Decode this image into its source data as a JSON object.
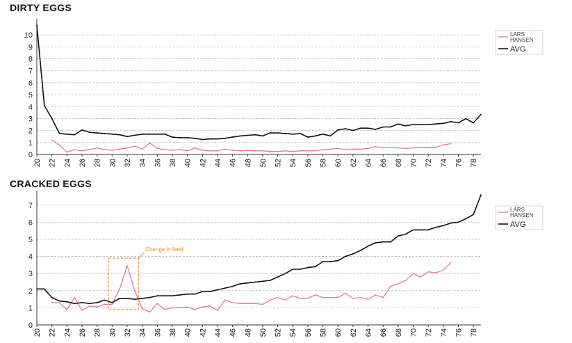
{
  "chart_data": [
    {
      "type": "line",
      "title": "DIRTY EGGS",
      "xlabel": "",
      "ylabel": "",
      "xlim": [
        20,
        79
      ],
      "ylim": [
        0,
        11
      ],
      "yticks": [
        0,
        1,
        2,
        3,
        4,
        5,
        6,
        7,
        8,
        9,
        10
      ],
      "xticks": [
        20,
        22,
        24,
        26,
        28,
        30,
        32,
        34,
        36,
        38,
        40,
        42,
        44,
        46,
        48,
        50,
        52,
        54,
        56,
        58,
        60,
        62,
        64,
        66,
        68,
        70,
        72,
        74,
        76,
        78
      ],
      "grid": "horizontal dashed",
      "legend": {
        "position": "top-right",
        "entries": [
          "LARS HANSEN",
          "AVG"
        ]
      },
      "series": [
        {
          "name": "LARS HANSEN",
          "color": "#e07aa5",
          "x": [
            22,
            23,
            24,
            25,
            26,
            27,
            28,
            29,
            30,
            31,
            32,
            33,
            34,
            35,
            36,
            37,
            38,
            39,
            40,
            41,
            42,
            43,
            44,
            45,
            46,
            47,
            48,
            49,
            50,
            51,
            52,
            53,
            54,
            55,
            56,
            57,
            58,
            59,
            60,
            61,
            62,
            63,
            64,
            65,
            66,
            67,
            68,
            69,
            70,
            71,
            72,
            73,
            74,
            75
          ],
          "y": [
            1.2,
            0.8,
            0.2,
            0.4,
            0.3,
            0.4,
            0.55,
            0.4,
            0.35,
            0.45,
            0.55,
            0.7,
            0.45,
            0.95,
            0.5,
            0.4,
            0.35,
            0.4,
            0.3,
            0.55,
            0.35,
            0.3,
            0.3,
            0.45,
            0.35,
            0.3,
            0.35,
            0.3,
            0.3,
            0.25,
            0.25,
            0.3,
            0.25,
            0.3,
            0.3,
            0.3,
            0.4,
            0.45,
            0.5,
            0.4,
            0.45,
            0.45,
            0.5,
            0.65,
            0.55,
            0.6,
            0.55,
            0.5,
            0.55,
            0.6,
            0.6,
            0.6,
            0.8,
            0.9
          ]
        },
        {
          "name": "AVG",
          "color": "#111111",
          "x": [
            20,
            21,
            22,
            23,
            24,
            25,
            26,
            27,
            28,
            29,
            30,
            31,
            32,
            33,
            34,
            35,
            36,
            37,
            38,
            39,
            40,
            41,
            42,
            43,
            44,
            45,
            46,
            47,
            48,
            49,
            50,
            51,
            52,
            53,
            54,
            55,
            56,
            57,
            58,
            59,
            60,
            61,
            62,
            63,
            64,
            65,
            66,
            67,
            68,
            69,
            70,
            71,
            72,
            73,
            74,
            75,
            76,
            77,
            78,
            79
          ],
          "y": [
            10.8,
            4.1,
            3.0,
            1.75,
            1.7,
            1.65,
            2.05,
            1.85,
            1.8,
            1.75,
            1.7,
            1.65,
            1.5,
            1.6,
            1.7,
            1.7,
            1.7,
            1.7,
            1.45,
            1.4,
            1.4,
            1.35,
            1.25,
            1.3,
            1.3,
            1.35,
            1.45,
            1.55,
            1.6,
            1.65,
            1.55,
            1.8,
            1.8,
            1.75,
            1.7,
            1.75,
            1.45,
            1.55,
            1.7,
            1.55,
            2.05,
            2.15,
            2.0,
            2.2,
            2.2,
            2.1,
            2.3,
            2.3,
            2.55,
            2.4,
            2.5,
            2.5,
            2.5,
            2.55,
            2.6,
            2.75,
            2.65,
            3.0,
            2.65,
            3.35
          ]
        }
      ]
    },
    {
      "type": "line",
      "title": "CRACKED EGGS",
      "xlabel": "",
      "ylabel": "",
      "xlim": [
        20,
        79
      ],
      "ylim": [
        0,
        7.6
      ],
      "yticks": [
        0,
        1,
        2,
        3,
        4,
        5,
        6,
        7
      ],
      "xticks": [
        20,
        22,
        24,
        26,
        28,
        30,
        32,
        34,
        36,
        38,
        40,
        42,
        44,
        46,
        48,
        50,
        52,
        54,
        56,
        58,
        60,
        62,
        64,
        66,
        68,
        70,
        72,
        74,
        76,
        78
      ],
      "grid": "horizontal dashed",
      "legend": {
        "position": "top-right",
        "entries": [
          "LARS HANSEN",
          "AVG"
        ]
      },
      "annotations": [
        {
          "text": "Change in feed",
          "x_from": 29.5,
          "x_to": 33.5,
          "y_from": 0.9,
          "y_to": 3.9
        }
      ],
      "series": [
        {
          "name": "LARS HANSEN",
          "color": "#e07aa5",
          "x": [
            22,
            23,
            24,
            25,
            26,
            27,
            28,
            29,
            30,
            31,
            32,
            33,
            34,
            35,
            36,
            37,
            38,
            39,
            40,
            41,
            42,
            43,
            44,
            45,
            46,
            47,
            48,
            49,
            50,
            51,
            52,
            53,
            54,
            55,
            56,
            57,
            58,
            59,
            60,
            61,
            62,
            63,
            64,
            65,
            66,
            67,
            68,
            69,
            70,
            71,
            72,
            73,
            74,
            75
          ],
          "y": [
            1.3,
            1.3,
            0.9,
            1.6,
            0.85,
            1.1,
            1.05,
            1.2,
            1.2,
            2.1,
            3.45,
            2.0,
            0.95,
            0.75,
            1.25,
            0.9,
            1.0,
            1.0,
            1.05,
            0.9,
            1.05,
            1.1,
            0.85,
            1.45,
            1.3,
            1.25,
            1.25,
            1.25,
            1.2,
            1.45,
            1.6,
            1.45,
            1.7,
            1.55,
            1.55,
            1.75,
            1.6,
            1.6,
            1.6,
            1.85,
            1.55,
            1.6,
            1.5,
            1.75,
            1.6,
            2.25,
            2.4,
            2.6,
            3.0,
            2.8,
            3.1,
            3.05,
            3.2,
            3.65
          ]
        },
        {
          "name": "AVG",
          "color": "#111111",
          "x": [
            20,
            21,
            22,
            23,
            24,
            25,
            26,
            27,
            28,
            29,
            30,
            31,
            32,
            33,
            34,
            35,
            36,
            37,
            38,
            39,
            40,
            41,
            42,
            43,
            44,
            45,
            46,
            47,
            48,
            49,
            50,
            51,
            52,
            53,
            54,
            55,
            56,
            57,
            58,
            59,
            60,
            61,
            62,
            63,
            64,
            65,
            66,
            67,
            68,
            69,
            70,
            71,
            72,
            73,
            74,
            75,
            76,
            77,
            78,
            79
          ],
          "y": [
            2.1,
            2.1,
            1.6,
            1.4,
            1.35,
            1.25,
            1.3,
            1.25,
            1.3,
            1.45,
            1.3,
            1.55,
            1.55,
            1.5,
            1.55,
            1.6,
            1.7,
            1.7,
            1.7,
            1.75,
            1.8,
            1.8,
            1.95,
            1.95,
            2.05,
            2.15,
            2.25,
            2.4,
            2.45,
            2.5,
            2.55,
            2.6,
            2.8,
            3.0,
            3.25,
            3.25,
            3.35,
            3.4,
            3.7,
            3.7,
            3.75,
            4.0,
            4.15,
            4.35,
            4.6,
            4.8,
            4.85,
            4.85,
            5.2,
            5.3,
            5.55,
            5.55,
            5.55,
            5.7,
            5.8,
            5.95,
            6.0,
            6.2,
            6.45,
            7.6
          ]
        }
      ]
    }
  ]
}
